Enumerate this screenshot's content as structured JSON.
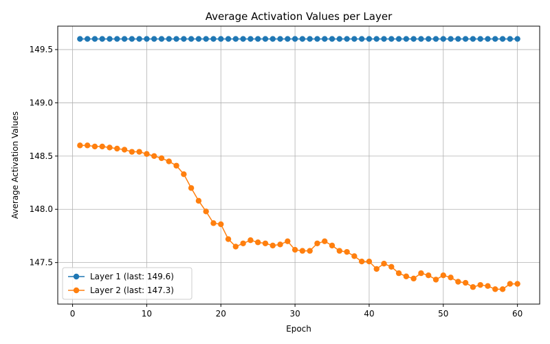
{
  "chart_data": {
    "type": "line",
    "title": "Average Activation Values per Layer",
    "xlabel": "Epoch",
    "ylabel": "Average Activation Values",
    "xlim": [
      -2.0,
      63.0
    ],
    "ylim": [
      147.11,
      149.72
    ],
    "xticks": [
      0,
      10,
      20,
      30,
      40,
      50,
      60
    ],
    "yticks": [
      147.5,
      148.0,
      148.5,
      149.0,
      149.5
    ],
    "ytick_labels": [
      "147.5",
      "148.0",
      "148.5",
      "149.0",
      "149.5"
    ],
    "grid": true,
    "legend_position": "lower-left",
    "x": [
      1,
      2,
      3,
      4,
      5,
      6,
      7,
      8,
      9,
      10,
      11,
      12,
      13,
      14,
      15,
      16,
      17,
      18,
      19,
      20,
      21,
      22,
      23,
      24,
      25,
      26,
      27,
      28,
      29,
      30,
      31,
      32,
      33,
      34,
      35,
      36,
      37,
      38,
      39,
      40,
      41,
      42,
      43,
      44,
      45,
      46,
      47,
      48,
      49,
      50,
      51,
      52,
      53,
      54,
      55,
      56,
      57,
      58,
      59,
      60
    ],
    "series": [
      {
        "name": "Layer 1 (last: 149.6)",
        "color": "#1f77b4",
        "values": [
          149.6,
          149.6,
          149.6,
          149.6,
          149.6,
          149.6,
          149.6,
          149.6,
          149.6,
          149.6,
          149.6,
          149.6,
          149.6,
          149.6,
          149.6,
          149.6,
          149.6,
          149.6,
          149.6,
          149.6,
          149.6,
          149.6,
          149.6,
          149.6,
          149.6,
          149.6,
          149.6,
          149.6,
          149.6,
          149.6,
          149.6,
          149.6,
          149.6,
          149.6,
          149.6,
          149.6,
          149.6,
          149.6,
          149.6,
          149.6,
          149.6,
          149.6,
          149.6,
          149.6,
          149.6,
          149.6,
          149.6,
          149.6,
          149.6,
          149.6,
          149.6,
          149.6,
          149.6,
          149.6,
          149.6,
          149.6,
          149.6,
          149.6,
          149.6,
          149.6
        ]
      },
      {
        "name": "Layer 2 (last: 147.3)",
        "color": "#ff7f0e",
        "values": [
          148.6,
          148.6,
          148.59,
          148.59,
          148.58,
          148.57,
          148.56,
          148.54,
          148.54,
          148.52,
          148.5,
          148.48,
          148.45,
          148.41,
          148.33,
          148.2,
          148.08,
          147.98,
          147.87,
          147.86,
          147.72,
          147.65,
          147.68,
          147.71,
          147.69,
          147.68,
          147.66,
          147.67,
          147.7,
          147.62,
          147.61,
          147.61,
          147.68,
          147.7,
          147.66,
          147.61,
          147.6,
          147.56,
          147.51,
          147.51,
          147.44,
          147.49,
          147.46,
          147.4,
          147.37,
          147.35,
          147.4,
          147.38,
          147.34,
          147.38,
          147.36,
          147.32,
          147.31,
          147.27,
          147.29,
          147.28,
          147.25,
          147.25,
          147.3,
          147.3
        ]
      }
    ]
  }
}
